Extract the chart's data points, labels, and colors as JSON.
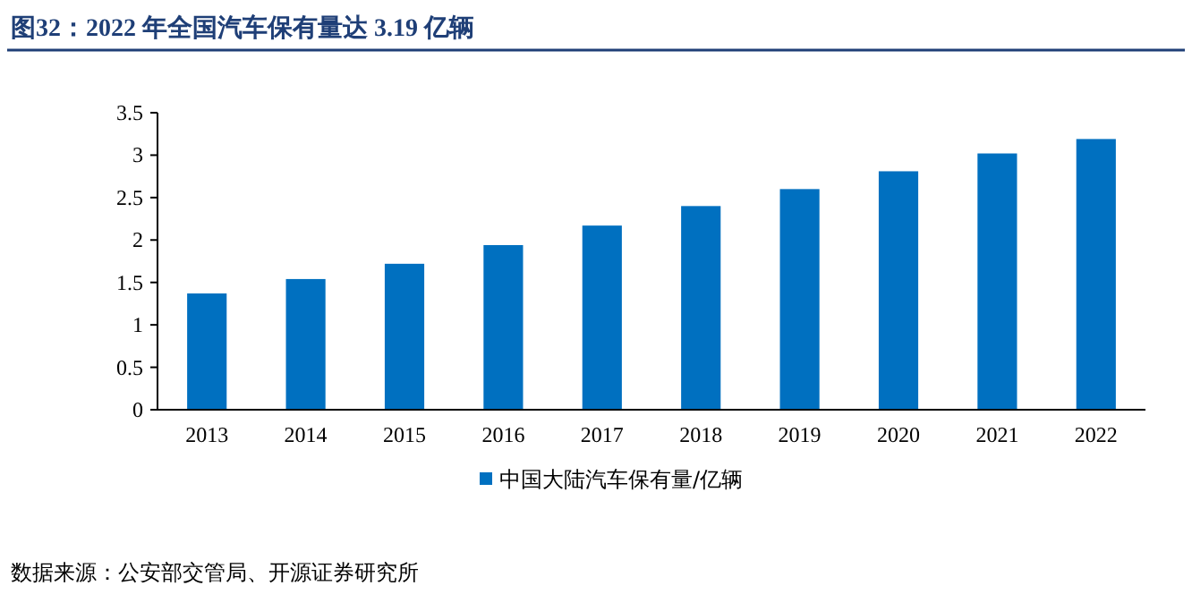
{
  "chart_data": {
    "type": "bar",
    "title": "图32：2022 年全国汽车保有量达 3.19 亿辆",
    "categories": [
      "2013",
      "2014",
      "2015",
      "2016",
      "2017",
      "2018",
      "2019",
      "2020",
      "2021",
      "2022"
    ],
    "series": [
      {
        "name": "中国大陆汽车保有量/亿辆",
        "color": "#0070c0",
        "values": [
          1.37,
          1.54,
          1.72,
          1.94,
          2.17,
          2.4,
          2.6,
          2.81,
          3.02,
          3.19
        ]
      }
    ],
    "ylim": [
      0,
      3.5
    ],
    "yticks": [
      0,
      0.5,
      1,
      1.5,
      2,
      2.5,
      3,
      3.5
    ],
    "grid": false,
    "legend": "bottom",
    "annotations": [
      "数据来源：公安部交管局、开源证券研究所"
    ]
  }
}
